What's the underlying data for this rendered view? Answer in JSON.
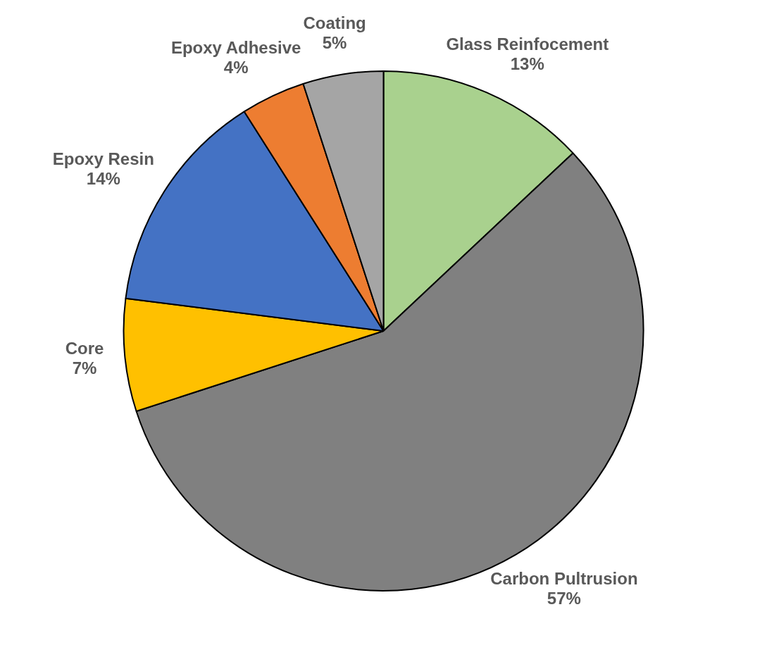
{
  "chart_data": {
    "type": "pie",
    "categories": [
      "Glass Reinfocement",
      "Carbon Pultrusion",
      "Core",
      "Epoxy Resin",
      "Epoxy Adhesive",
      "Coating"
    ],
    "values": [
      13,
      57,
      7,
      14,
      4,
      5
    ],
    "colors": [
      "#a9d18e",
      "#808080",
      "#ffc000",
      "#4472c4",
      "#ed7d31",
      "#a5a5a5"
    ],
    "value_labels": [
      "13%",
      "57%",
      "7%",
      "14%",
      "4%",
      "5%"
    ],
    "legend": false
  }
}
